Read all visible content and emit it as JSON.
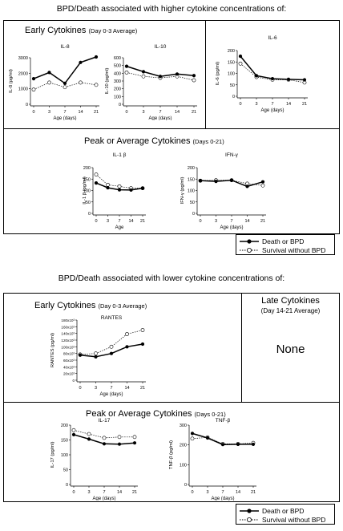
{
  "headings": {
    "top": "BPD/Death associated with higher cytokine concentrations of:",
    "bottom": "BPD/Death associated with lower cytokine concentrations of:"
  },
  "panels": {
    "early_top": {
      "title": "Early Cytokines",
      "sub": "(Day 0-3 Average)"
    },
    "peak_top": {
      "title": "Peak or Average Cytokines",
      "sub": "(Days 0-21)"
    },
    "early_bottom": {
      "title": "Early Cytokines",
      "sub": "(Day 0-3 Average)"
    },
    "late_bottom": {
      "title": "Late Cytokines",
      "sub": "(Day 14-21 Average)",
      "none": "None"
    },
    "peak_bottom": {
      "title": "Peak or Average Cytokines",
      "sub": "(Days 0-21)"
    }
  },
  "legend": {
    "death": "Death or BPD",
    "survival": "Survival without BPD"
  },
  "chart_data": [
    {
      "id": "il8",
      "type": "line",
      "title": "IL-8",
      "ylabel": "IL-8 (pg/ml)",
      "xlabel": "Age (days)",
      "x": [
        0,
        3,
        7,
        14,
        21
      ],
      "ylim": [
        0,
        3000
      ],
      "yticks": [
        0,
        1000,
        2000,
        3000
      ],
      "ytick_labels": [
        "0",
        "1000",
        "2000",
        "3000"
      ],
      "series": [
        {
          "name": "Death or BPD",
          "values": [
            1650,
            2050,
            1350,
            2700,
            3050
          ]
        },
        {
          "name": "Survival without BPD",
          "values": [
            950,
            1400,
            1100,
            1400,
            1250
          ]
        }
      ]
    },
    {
      "id": "il10",
      "type": "line",
      "title": "IL-10",
      "ylabel": "IL-10 (pg/ml)",
      "xlabel": "Age (days)",
      "x": [
        0,
        3,
        7,
        14,
        21
      ],
      "ylim": [
        0,
        600
      ],
      "yticks": [
        0,
        100,
        200,
        300,
        400,
        500,
        600
      ],
      "ytick_labels": [
        "0",
        "100",
        "200",
        "300",
        "400",
        "500",
        "600"
      ],
      "series": [
        {
          "name": "Death or BPD",
          "values": [
            490,
            420,
            360,
            390,
            370
          ]
        },
        {
          "name": "Survival without BPD",
          "values": [
            410,
            360,
            340,
            360,
            310
          ]
        }
      ]
    },
    {
      "id": "il6",
      "type": "line",
      "title": "IL-6",
      "ylabel": "IL-6 (pg/ml)",
      "xlabel": "Age (days)",
      "x": [
        0,
        3,
        7,
        14,
        21
      ],
      "ylim": [
        0,
        200
      ],
      "yticks": [
        0,
        50,
        100,
        150,
        200
      ],
      "ytick_labels": [
        "0",
        "50",
        "100",
        "150",
        "200"
      ],
      "series": [
        {
          "name": "Death or BPD",
          "values": [
            175,
            90,
            77,
            74,
            72
          ]
        },
        {
          "name": "Survival without BPD",
          "values": [
            143,
            84,
            72,
            72,
            60
          ]
        }
      ]
    },
    {
      "id": "il1b",
      "type": "line",
      "title": "IL-1 β",
      "ylabel": "IL-1 β (pg/ml)",
      "xlabel": "Age",
      "x": [
        0,
        3,
        7,
        14,
        21
      ],
      "ylim": [
        0,
        200
      ],
      "yticks": [
        0,
        50,
        100,
        150,
        200
      ],
      "ytick_labels": [
        "0",
        "50",
        "100",
        "150",
        "200"
      ],
      "series": [
        {
          "name": "Death or BPD",
          "values": [
            133,
            112,
            103,
            102,
            110
          ]
        },
        {
          "name": "Survival without BPD",
          "values": [
            170,
            125,
            118,
            110,
            110
          ]
        }
      ]
    },
    {
      "id": "ifng",
      "type": "line",
      "title": "IFN-γ",
      "ylabel": "IFN-γ (pg/ml)",
      "xlabel": "Age (days)",
      "x": [
        0,
        3,
        7,
        14,
        21
      ],
      "ylim": [
        0,
        200
      ],
      "yticks": [
        0,
        50,
        100,
        150,
        200
      ],
      "ytick_labels": [
        "0",
        "50",
        "100",
        "150",
        "200"
      ],
      "series": [
        {
          "name": "Death or BPD",
          "values": [
            143,
            140,
            145,
            118,
            138
          ]
        },
        {
          "name": "Survival without BPD",
          "values": [
            143,
            145,
            145,
            130,
            122
          ]
        }
      ]
    },
    {
      "id": "rantes",
      "type": "line",
      "title": "RANTES",
      "ylabel": "RANTES (pg/ml)",
      "xlabel": "Age (days)",
      "x": [
        0,
        3,
        7,
        14,
        21
      ],
      "ylim": [
        0,
        180000
      ],
      "yticks": [
        0,
        20000,
        40000,
        60000,
        80000,
        100000,
        120000,
        140000,
        160000,
        180000
      ],
      "ytick_labels": [
        "0",
        "20x10³",
        "40x10³",
        "60x10³",
        "80x10³",
        "100x10³",
        "120x10³",
        "140x10³",
        "160x10³",
        "180x10³"
      ],
      "series": [
        {
          "name": "Death or BPD",
          "values": [
            75000,
            70000,
            80000,
            100000,
            108000
          ]
        },
        {
          "name": "Survival without BPD",
          "values": [
            77000,
            80000,
            100000,
            138000,
            150000
          ]
        }
      ]
    },
    {
      "id": "il17",
      "type": "line",
      "title": "IL-17",
      "ylabel": "IL-17 (pg/ml)",
      "xlabel": "Age (days)",
      "x": [
        0,
        3,
        7,
        14,
        21
      ],
      "ylim": [
        0,
        200
      ],
      "yticks": [
        0,
        50,
        100,
        150,
        200
      ],
      "ytick_labels": [
        "0",
        "50",
        "100",
        "150",
        "200"
      ],
      "series": [
        {
          "name": "Death or BPD",
          "values": [
            168,
            153,
            137,
            136,
            140
          ]
        },
        {
          "name": "Survival without BPD",
          "values": [
            183,
            170,
            157,
            160,
            160
          ]
        }
      ]
    },
    {
      "id": "tnfb",
      "type": "line",
      "title": "TNF-β",
      "ylabel": "TNF-β (pg/ml)",
      "xlabel": "Age (days)",
      "x": [
        0,
        3,
        7,
        14,
        21
      ],
      "ylim": [
        0,
        300
      ],
      "yticks": [
        0,
        100,
        200,
        300
      ],
      "ytick_labels": [
        "0",
        "100",
        "200",
        "300"
      ],
      "series": [
        {
          "name": "Death or BPD",
          "values": [
            258,
            235,
            202,
            203,
            203
          ]
        },
        {
          "name": "Survival without BPD",
          "values": [
            232,
            238,
            205,
            205,
            210
          ]
        }
      ]
    }
  ]
}
